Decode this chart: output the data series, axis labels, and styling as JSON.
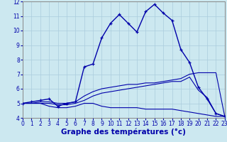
{
  "xlabel": "Graphe des températures (°c)",
  "hours": [
    0,
    1,
    2,
    3,
    4,
    5,
    6,
    7,
    8,
    9,
    10,
    11,
    12,
    13,
    14,
    15,
    16,
    17,
    18,
    19,
    20,
    21,
    22,
    23
  ],
  "temp_main": [
    5.0,
    5.1,
    5.2,
    5.3,
    4.8,
    5.0,
    5.1,
    7.5,
    7.7,
    9.5,
    10.5,
    11.1,
    10.5,
    9.9,
    11.3,
    11.8,
    11.2,
    10.7,
    8.7,
    7.8,
    6.1,
    5.3,
    4.3,
    4.1
  ],
  "temp_line2": [
    5.0,
    5.0,
    5.1,
    5.1,
    5.0,
    5.0,
    5.1,
    5.5,
    5.8,
    6.0,
    6.1,
    6.2,
    6.3,
    6.3,
    6.4,
    6.4,
    6.5,
    6.6,
    6.7,
    7.0,
    7.1,
    7.1,
    7.1,
    4.1
  ],
  "temp_line3": [
    5.0,
    5.0,
    5.0,
    5.0,
    4.9,
    4.9,
    5.0,
    5.2,
    5.5,
    5.7,
    5.8,
    5.9,
    6.0,
    6.1,
    6.2,
    6.3,
    6.4,
    6.5,
    6.5,
    6.8,
    5.9,
    5.4,
    4.3,
    4.1
  ],
  "temp_line4": [
    5.0,
    5.0,
    5.0,
    4.8,
    4.7,
    4.7,
    4.8,
    5.0,
    5.0,
    4.8,
    4.7,
    4.7,
    4.7,
    4.7,
    4.6,
    4.6,
    4.6,
    4.6,
    4.5,
    4.4,
    4.3,
    4.2,
    4.1,
    4.1
  ],
  "ylim": [
    4,
    12
  ],
  "xlim": [
    0,
    23
  ],
  "yticks": [
    4,
    5,
    6,
    7,
    8,
    9,
    10,
    11,
    12
  ],
  "xticks": [
    0,
    1,
    2,
    3,
    4,
    5,
    6,
    7,
    8,
    9,
    10,
    11,
    12,
    13,
    14,
    15,
    16,
    17,
    18,
    19,
    20,
    21,
    22,
    23
  ],
  "line_color": "#0000aa",
  "bg_color": "#cce8f0",
  "grid_color": "#aaccdd",
  "tick_fontsize": 5.5,
  "label_fontsize": 7.5
}
